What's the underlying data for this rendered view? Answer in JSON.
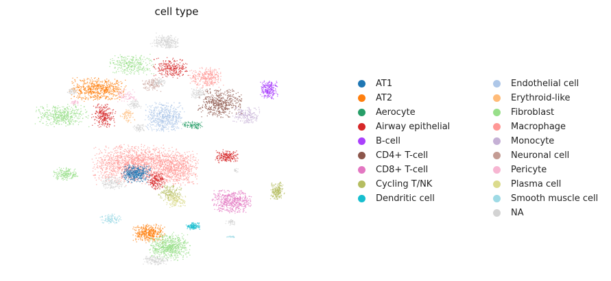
{
  "chart_data": {
    "type": "scatter",
    "title": "cell type",
    "xlabel": "",
    "ylabel": "",
    "axes": "hidden",
    "grid": false,
    "legend_position": "right",
    "categories": [
      {
        "name": "AT1",
        "color": "#1f77b4"
      },
      {
        "name": "AT2",
        "color": "#ff7f0e"
      },
      {
        "name": "Aerocyte",
        "color": "#279e68"
      },
      {
        "name": "Airway epithelial",
        "color": "#d62728"
      },
      {
        "name": "B-cell",
        "color": "#aa40fc"
      },
      {
        "name": "CD4+ T-cell",
        "color": "#8c564b"
      },
      {
        "name": "CD8+ T-cell",
        "color": "#e377c2"
      },
      {
        "name": "Cycling T/NK",
        "color": "#b5bd61"
      },
      {
        "name": "Dendritic cell",
        "color": "#17becf"
      },
      {
        "name": "Endothelial cell",
        "color": "#aec7e8"
      },
      {
        "name": "Erythroid-like",
        "color": "#ffbb78"
      },
      {
        "name": "Fibroblast",
        "color": "#98df8a"
      },
      {
        "name": "Macrophage",
        "color": "#ff9896"
      },
      {
        "name": "Monocyte",
        "color": "#c5b0d5"
      },
      {
        "name": "Neuronal cell",
        "color": "#c49c94"
      },
      {
        "name": "Pericyte",
        "color": "#f7b6d2"
      },
      {
        "name": "Plasma cell",
        "color": "#dbdb8d"
      },
      {
        "name": "Smooth muscle cell",
        "color": "#9edae5"
      },
      {
        "name": "NA",
        "color": "#d3d3d3"
      }
    ],
    "xlim": [
      0,
      100
    ],
    "ylim": [
      0,
      100
    ],
    "clusters": [
      {
        "label": "NA",
        "cx": 47.8,
        "cy": 92.7,
        "rx": 4.3,
        "ry": 3.0,
        "n": 260
      },
      {
        "label": "Fibroblast",
        "cx": 36.4,
        "cy": 83.4,
        "rx": 6.7,
        "ry": 4.0,
        "n": 300
      },
      {
        "label": "Airway epithelial",
        "cx": 49.4,
        "cy": 81.8,
        "rx": 5.4,
        "ry": 3.8,
        "n": 260
      },
      {
        "label": "Neuronal cell",
        "cx": 43.3,
        "cy": 75.0,
        "rx": 3.2,
        "ry": 2.8,
        "n": 110
      },
      {
        "label": "Macrophage",
        "cx": 61.1,
        "cy": 77.8,
        "rx": 5.5,
        "ry": 4.0,
        "n": 300
      },
      {
        "label": "AT2",
        "cx": 25.4,
        "cy": 72.8,
        "rx": 8.6,
        "ry": 4.6,
        "n": 600
      },
      {
        "label": "NA",
        "cx": 16.9,
        "cy": 72.2,
        "rx": 1.5,
        "ry": 1.8,
        "n": 50
      },
      {
        "label": "Pericyte",
        "cx": 34.9,
        "cy": 70.2,
        "rx": 3.0,
        "ry": 2.6,
        "n": 80
      },
      {
        "label": "Pericyte",
        "cx": 17.8,
        "cy": 67.4,
        "rx": 1.3,
        "ry": 1.1,
        "n": 30
      },
      {
        "label": "Fibroblast",
        "cx": 13.6,
        "cy": 62.0,
        "rx": 8.1,
        "ry": 4.3,
        "n": 450
      },
      {
        "label": "Airway epithelial",
        "cx": 27.2,
        "cy": 62.0,
        "rx": 3.6,
        "ry": 4.6,
        "n": 250
      },
      {
        "label": "Erythroid-like",
        "cx": 35.2,
        "cy": 62.0,
        "rx": 2.3,
        "ry": 2.8,
        "n": 70
      },
      {
        "label": "NA",
        "cx": 37.3,
        "cy": 66.6,
        "rx": 2.0,
        "ry": 1.5,
        "n": 70
      },
      {
        "label": "Endothelial cell",
        "cx": 47.2,
        "cy": 61.4,
        "rx": 6.1,
        "ry": 5.7,
        "n": 550
      },
      {
        "label": "NA",
        "cx": 38.8,
        "cy": 56.7,
        "rx": 2.0,
        "ry": 1.5,
        "n": 60
      },
      {
        "label": "NA",
        "cx": 45.4,
        "cy": 75.8,
        "rx": 2.0,
        "ry": 1.6,
        "n": 60
      },
      {
        "label": "CD4+ T-cell",
        "cx": 65.5,
        "cy": 67.4,
        "rx": 6.7,
        "ry": 5.7,
        "n": 500
      },
      {
        "label": "NA",
        "cx": 58.3,
        "cy": 71.2,
        "rx": 2.5,
        "ry": 2.2,
        "n": 90
      },
      {
        "label": "Monocyte",
        "cx": 74.1,
        "cy": 62.0,
        "rx": 4.4,
        "ry": 3.3,
        "n": 180
      },
      {
        "label": "Aerocyte",
        "cx": 56.6,
        "cy": 57.9,
        "rx": 3.4,
        "ry": 1.5,
        "n": 100
      },
      {
        "label": "B-cell",
        "cx": 81.3,
        "cy": 72.8,
        "rx": 2.7,
        "ry": 3.6,
        "n": 240
      },
      {
        "label": "Airway epithelial",
        "cx": 67.6,
        "cy": 44.9,
        "rx": 3.4,
        "ry": 2.6,
        "n": 200
      },
      {
        "label": "Macrophage",
        "cx": 37.3,
        "cy": 41.5,
        "rx": 12.8,
        "ry": 7.7,
        "n": 1500
      },
      {
        "label": "Macrophage",
        "cx": 51.1,
        "cy": 40.0,
        "rx": 6.7,
        "ry": 6.7,
        "n": 700
      },
      {
        "label": "AT1",
        "cx": 37.9,
        "cy": 37.7,
        "rx": 4.4,
        "ry": 3.4,
        "n": 400
      },
      {
        "label": "Airway epithelial",
        "cx": 44.5,
        "cy": 34.8,
        "rx": 2.8,
        "ry": 3.6,
        "n": 180
      },
      {
        "label": "NA",
        "cx": 30.3,
        "cy": 34.0,
        "rx": 4.0,
        "ry": 2.6,
        "n": 160
      },
      {
        "label": "Fibroblast",
        "cx": 14.8,
        "cy": 37.4,
        "rx": 4.0,
        "ry": 2.6,
        "n": 180
      },
      {
        "label": "Cycling T/NK",
        "cx": 48.9,
        "cy": 29.7,
        "rx": 3.8,
        "ry": 3.1,
        "n": 170
      },
      {
        "label": "Plasma cell",
        "cx": 50.8,
        "cy": 26.6,
        "rx": 3.2,
        "ry": 2.6,
        "n": 140
      },
      {
        "label": "NA",
        "cx": 70.6,
        "cy": 39.2,
        "rx": 0.9,
        "ry": 0.9,
        "n": 20
      },
      {
        "label": "Cycling T/NK",
        "cx": 84.2,
        "cy": 30.5,
        "rx": 2.1,
        "ry": 3.4,
        "n": 200
      },
      {
        "label": "CD8+ T-cell",
        "cx": 69.4,
        "cy": 26.1,
        "rx": 6.1,
        "ry": 4.6,
        "n": 500
      },
      {
        "label": "NA",
        "cx": 69.1,
        "cy": 17.4,
        "rx": 1.7,
        "ry": 1.1,
        "n": 40
      },
      {
        "label": "Smooth muscle cell",
        "cx": 29.6,
        "cy": 18.9,
        "rx": 3.4,
        "ry": 1.9,
        "n": 110
      },
      {
        "label": "AT2",
        "cx": 42.1,
        "cy": 12.8,
        "rx": 4.8,
        "ry": 3.6,
        "n": 400
      },
      {
        "label": "Fibroblast",
        "cx": 48.9,
        "cy": 7.1,
        "rx": 6.1,
        "ry": 5.1,
        "n": 650
      },
      {
        "label": "Dendritic cell",
        "cx": 56.7,
        "cy": 15.8,
        "rx": 2.3,
        "ry": 1.5,
        "n": 120
      },
      {
        "label": "NA",
        "cx": 44.5,
        "cy": 1.5,
        "rx": 4.4,
        "ry": 1.8,
        "n": 150
      },
      {
        "label": "Smooth muscle cell",
        "cx": 68.9,
        "cy": 11.4,
        "rx": 1.5,
        "ry": 0.4,
        "n": 20
      }
    ]
  }
}
